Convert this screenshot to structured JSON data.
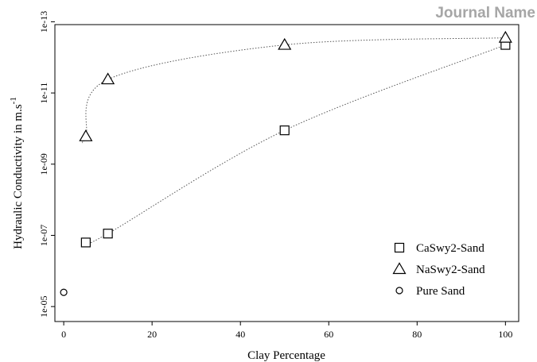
{
  "header": {
    "journal": "Journal Name"
  },
  "chart_data": {
    "type": "scatter",
    "title": "",
    "xlabel": "Clay Percentage",
    "ylabel": {
      "main": "Hydraulic Conductivity in m.s",
      "superscript": "-1"
    },
    "xlim": [
      -2,
      103
    ],
    "ylim_log10": [
      -4.58,
      -12.92
    ],
    "y_scale": "log, inverted (1e-05 at bottom, 1e-13 at top)",
    "x_ticks": [
      0,
      20,
      40,
      60,
      80,
      100
    ],
    "x_tick_labels": [
      "0",
      "20",
      "40",
      "60",
      "80",
      "100"
    ],
    "y_ticks_exp": [
      -5,
      -7,
      -9,
      -11,
      -13
    ],
    "y_tick_labels": [
      "1e-05",
      "1e-07",
      "1e-09",
      "1e-11",
      "1e-13"
    ],
    "grid": false,
    "legend_position": "bottom-right",
    "series": [
      {
        "name": "CaSwy2-Sand",
        "marker": "square",
        "x": [
          5,
          10,
          50,
          100
        ],
        "y_exp": [
          -6.8,
          -7.05,
          -9.95,
          -12.35
        ],
        "fit": "dotted",
        "fit_x_start": 5
      },
      {
        "name": "NaSwy2-Sand",
        "marker": "triangle",
        "x": [
          5,
          10,
          50,
          100
        ],
        "y_exp": [
          -9.78,
          -11.38,
          -12.35,
          -12.55
        ],
        "fit": "dotted",
        "fit_x_start": 4.2
      },
      {
        "name": "Pure Sand",
        "marker": "circle",
        "x": [
          0
        ],
        "y_exp": [
          -5.4
        ]
      }
    ]
  }
}
